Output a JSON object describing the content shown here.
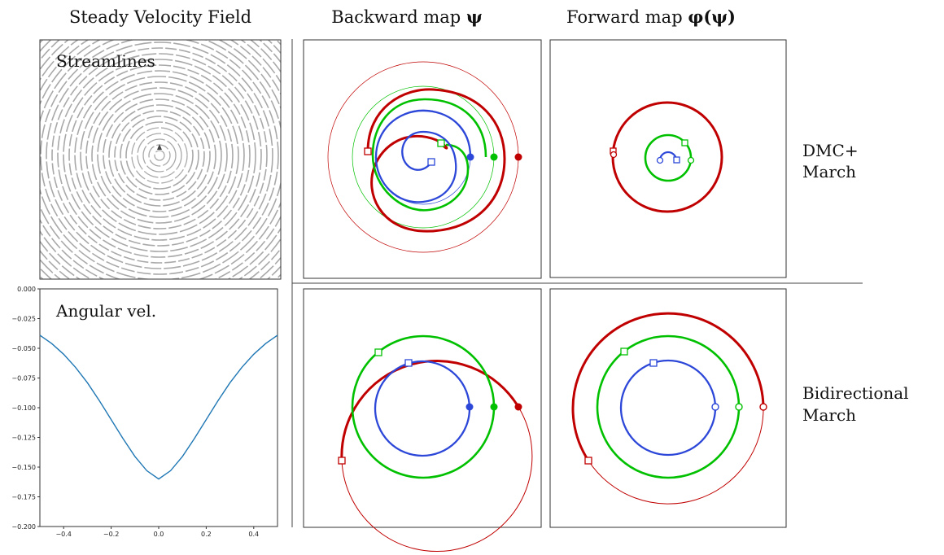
{
  "headers": {
    "col1": "Steady Velocity Field",
    "col2_text": "Backward map ",
    "col2_sym": "ψ",
    "col3_text": "Forward map ",
    "col3_sym": "φ(ψ)"
  },
  "row_labels": {
    "row1_line1": "DMC+",
    "row1_line2": "March",
    "row2_line1": "Bidirectional",
    "row2_line2": "March"
  },
  "insets": {
    "streamlines": "Streamlines",
    "angular": "Angular vel."
  },
  "colors": {
    "red": "#c00000",
    "green": "#00c000",
    "blue": "#2d48d8",
    "curve": "#1f77b4",
    "stream": "#a9a9a9"
  },
  "chart_data": {
    "type": "line",
    "title": "",
    "label": "Angular vel.",
    "xlabel": "",
    "ylabel": "",
    "xlim": [
      -0.5,
      0.5
    ],
    "ylim": [
      -0.2,
      0.0
    ],
    "xticks": [
      "−0.4",
      "−0.2",
      "0.0",
      "0.2",
      "0.4"
    ],
    "xtick_values": [
      -0.4,
      -0.2,
      0.0,
      0.2,
      0.4
    ],
    "yticks": [
      "0.000",
      "−0.025",
      "−0.050",
      "−0.075",
      "−0.100",
      "−0.125",
      "−0.150",
      "−0.175",
      "−0.200"
    ],
    "ytick_values": [
      0.0,
      -0.025,
      -0.05,
      -0.075,
      -0.1,
      -0.125,
      -0.15,
      -0.175,
      -0.2
    ],
    "x": [
      -0.5,
      -0.45,
      -0.4,
      -0.35,
      -0.3,
      -0.25,
      -0.2,
      -0.15,
      -0.1,
      -0.05,
      0.0,
      0.05,
      0.1,
      0.15,
      0.2,
      0.25,
      0.3,
      0.35,
      0.4,
      0.45,
      0.5
    ],
    "y": [
      -0.039,
      -0.046,
      -0.055,
      -0.066,
      -0.079,
      -0.094,
      -0.11,
      -0.126,
      -0.141,
      -0.153,
      -0.16,
      -0.153,
      -0.141,
      -0.126,
      -0.11,
      -0.094,
      -0.079,
      -0.066,
      -0.055,
      -0.046,
      -0.039
    ]
  }
}
